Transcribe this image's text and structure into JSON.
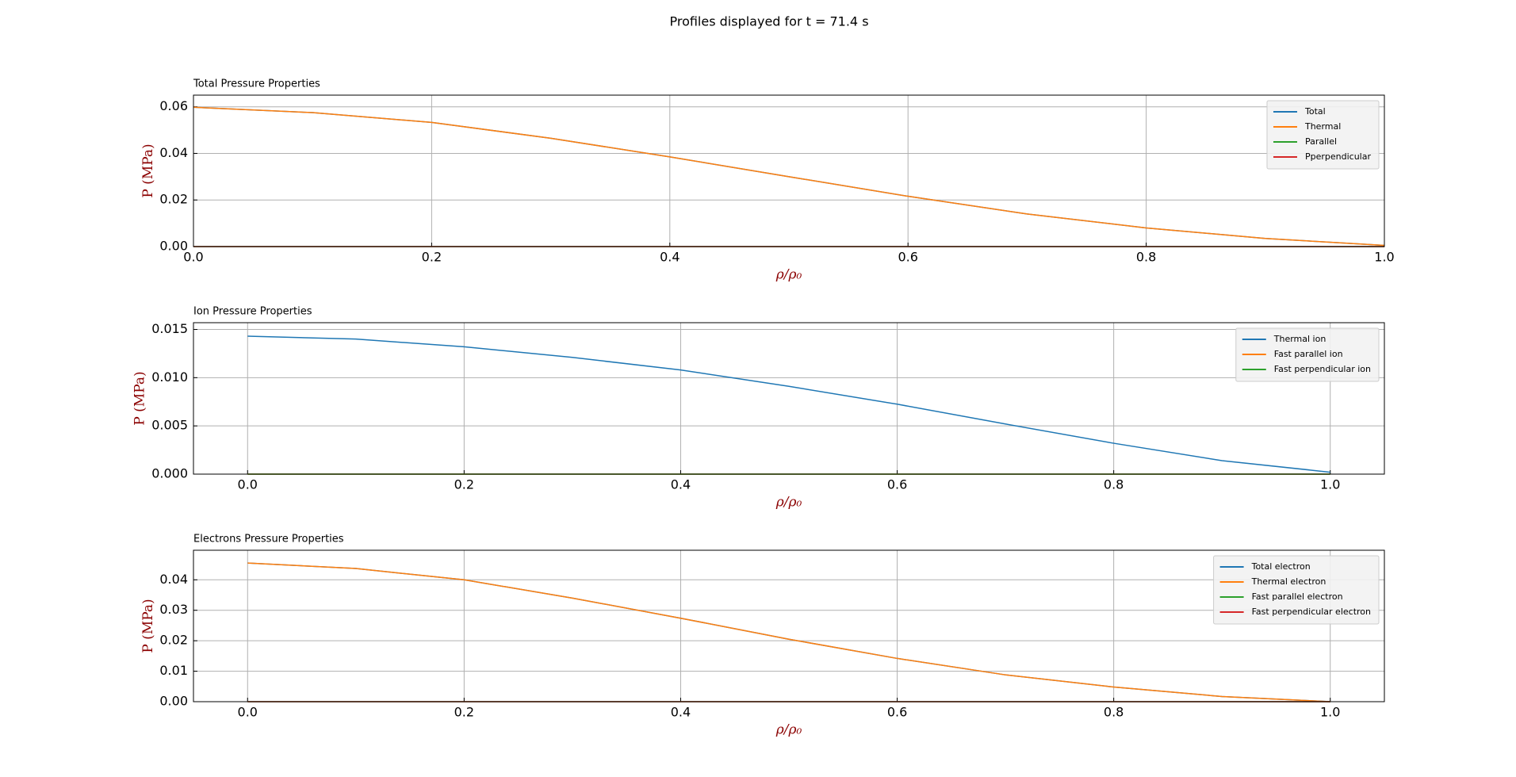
{
  "title": "Profiles displayed for t = 71.4 s",
  "chart_data": [
    {
      "type": "line",
      "title": "Total Pressure Properties",
      "xlabel": "ρ/ρ₀",
      "ylabel": "P (MPa)",
      "x": [
        0,
        0.1,
        0.2,
        0.3,
        0.4,
        0.5,
        0.6,
        0.7,
        0.8,
        0.9,
        1.0
      ],
      "series": [
        {
          "name": "Total",
          "color": "#1f77b4",
          "values": [
            0.0598,
            0.0575,
            0.0533,
            0.0465,
            0.0385,
            0.03,
            0.0216,
            0.014,
            0.008,
            0.0035,
            0.0005
          ]
        },
        {
          "name": "Thermal",
          "color": "#ff7f0e",
          "values": [
            0.0598,
            0.0575,
            0.0533,
            0.0465,
            0.0385,
            0.03,
            0.0216,
            0.014,
            0.008,
            0.0035,
            0.0005
          ]
        },
        {
          "name": "Parallel",
          "color": "#2ca02c",
          "values": [
            0,
            0,
            0,
            0,
            0,
            0,
            0,
            0,
            0,
            0,
            0
          ]
        },
        {
          "name": "Pperpendicular",
          "color": "#d62728",
          "values": [
            0,
            0,
            0,
            0,
            0,
            0,
            0,
            0,
            0,
            0,
            0
          ]
        }
      ],
      "xlim": [
        0,
        1.0
      ],
      "xticks": [
        {
          "value": 0,
          "label": "0.0"
        },
        {
          "value": 0.2,
          "label": "0.2"
        },
        {
          "value": 0.4,
          "label": "0.4"
        },
        {
          "value": 0.6,
          "label": "0.6"
        },
        {
          "value": 0.8,
          "label": "0.8"
        },
        {
          "value": 1.0,
          "label": "1.0"
        }
      ],
      "ylim": [
        0,
        0.065
      ],
      "yticks": [
        {
          "value": 0,
          "label": "0.00"
        },
        {
          "value": 0.02,
          "label": "0.02"
        },
        {
          "value": 0.04,
          "label": "0.04"
        },
        {
          "value": 0.06,
          "label": "0.06"
        }
      ],
      "grid": true,
      "legend": "upper right"
    },
    {
      "type": "line",
      "title": "Ion Pressure Properties",
      "xlabel": "ρ/ρ₀",
      "ylabel": "P (MPa)",
      "x": [
        0,
        0.1,
        0.2,
        0.3,
        0.4,
        0.5,
        0.6,
        0.7,
        0.8,
        0.9,
        1.0
      ],
      "series": [
        {
          "name": "Thermal ion",
          "color": "#1f77b4",
          "values": [
            0.0143,
            0.014,
            0.0132,
            0.0121,
            0.0108,
            0.0091,
            0.00725,
            0.0052,
            0.0032,
            0.0014,
            0.0002
          ]
        },
        {
          "name": "Fast parallel ion",
          "color": "#ff7f0e",
          "values": [
            0,
            0,
            0,
            0,
            0,
            0,
            0,
            0,
            0,
            0,
            0
          ]
        },
        {
          "name": "Fast perpendicular ion",
          "color": "#2ca02c",
          "values": [
            0,
            0,
            0,
            0,
            0,
            0,
            0,
            0,
            0,
            0,
            0
          ]
        }
      ],
      "xlim": [
        -0.05,
        1.05
      ],
      "xticks": [
        {
          "value": 0,
          "label": "0.0"
        },
        {
          "value": 0.2,
          "label": "0.2"
        },
        {
          "value": 0.4,
          "label": "0.4"
        },
        {
          "value": 0.6,
          "label": "0.6"
        },
        {
          "value": 0.8,
          "label": "0.8"
        },
        {
          "value": 1.0,
          "label": "1.0"
        }
      ],
      "ylim": [
        0,
        0.0157
      ],
      "yticks": [
        {
          "value": 0,
          "label": "0.000"
        },
        {
          "value": 0.005,
          "label": "0.005"
        },
        {
          "value": 0.01,
          "label": "0.010"
        },
        {
          "value": 0.015,
          "label": "0.015"
        }
      ],
      "grid": true,
      "legend": "upper right"
    },
    {
      "type": "line",
      "title": "Electrons Pressure Properties",
      "xlabel": "ρ/ρ₀",
      "ylabel": "P (MPa)",
      "x": [
        0,
        0.1,
        0.2,
        0.3,
        0.4,
        0.5,
        0.6,
        0.7,
        0.8,
        0.9,
        1.0
      ],
      "series": [
        {
          "name": "Total electron",
          "color": "#1f77b4",
          "values": [
            0.0455,
            0.0437,
            0.04,
            0.034,
            0.0274,
            0.0205,
            0.0142,
            0.0088,
            0.0048,
            0.0017,
            0
          ]
        },
        {
          "name": "Thermal electron",
          "color": "#ff7f0e",
          "values": [
            0.0455,
            0.0437,
            0.04,
            0.034,
            0.0274,
            0.0205,
            0.0142,
            0.0088,
            0.0048,
            0.0017,
            0
          ]
        },
        {
          "name": "Fast parallel electron",
          "color": "#2ca02c",
          "values": [
            0,
            0,
            0,
            0,
            0,
            0,
            0,
            0,
            0,
            0,
            0
          ]
        },
        {
          "name": "Fast perpendicular electron",
          "color": "#d62728",
          "values": [
            0,
            0,
            0,
            0,
            0,
            0,
            0,
            0,
            0,
            0,
            0
          ]
        }
      ],
      "xlim": [
        -0.05,
        1.05
      ],
      "xticks": [
        {
          "value": 0,
          "label": "0.0"
        },
        {
          "value": 0.2,
          "label": "0.2"
        },
        {
          "value": 0.4,
          "label": "0.4"
        },
        {
          "value": 0.6,
          "label": "0.6"
        },
        {
          "value": 0.8,
          "label": "0.8"
        },
        {
          "value": 1.0,
          "label": "1.0"
        }
      ],
      "ylim": [
        0,
        0.0497
      ],
      "yticks": [
        {
          "value": 0,
          "label": "0.00"
        },
        {
          "value": 0.01,
          "label": "0.01"
        },
        {
          "value": 0.02,
          "label": "0.02"
        },
        {
          "value": 0.03,
          "label": "0.03"
        },
        {
          "value": 0.04,
          "label": "0.04"
        }
      ],
      "grid": true,
      "legend": "upper right"
    }
  ]
}
